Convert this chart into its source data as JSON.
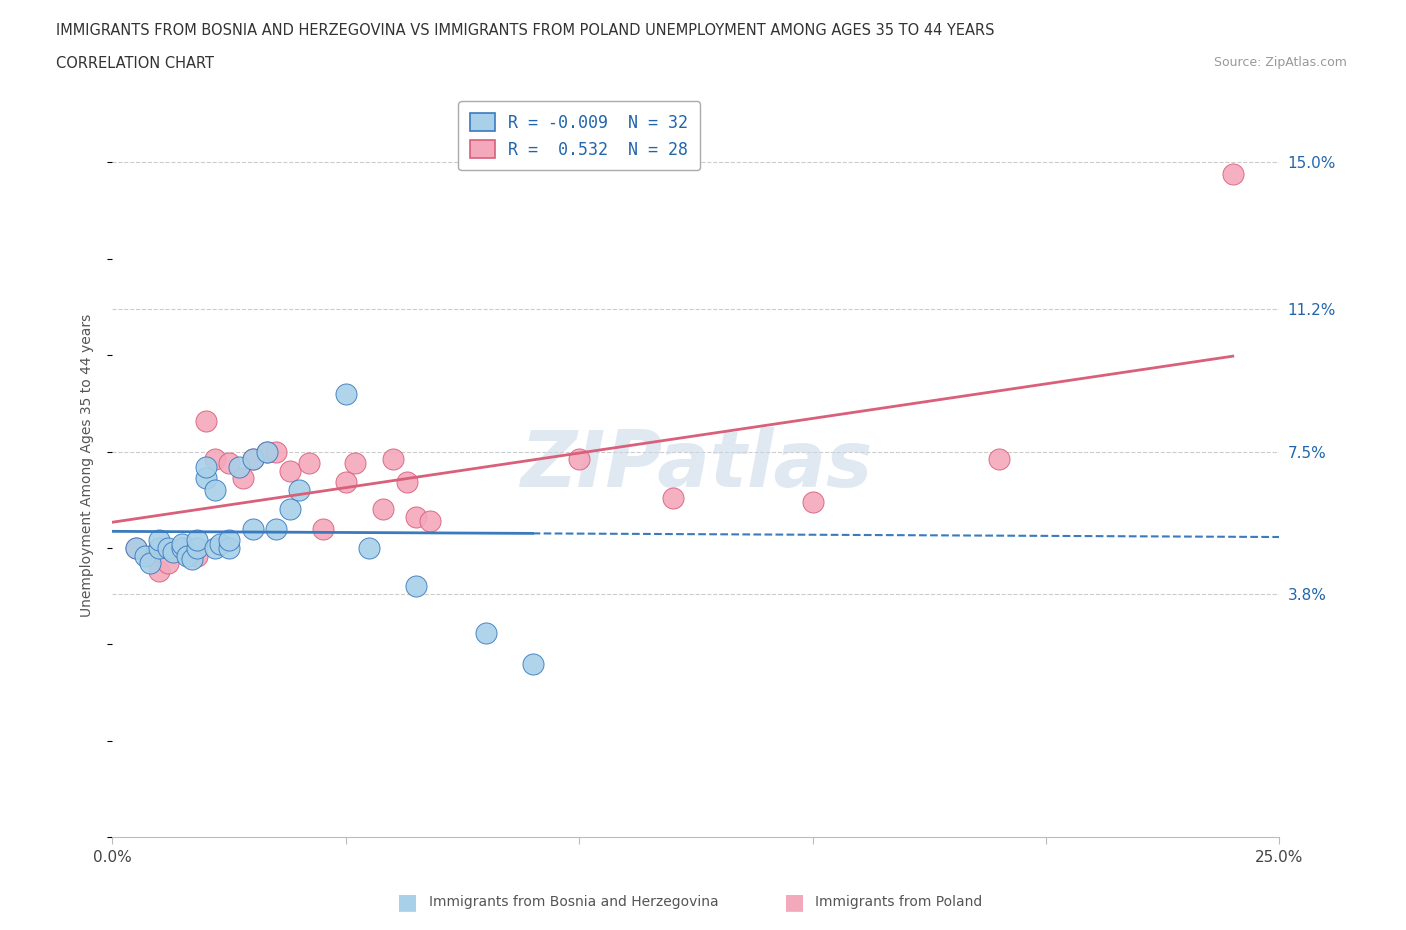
{
  "title_line1": "IMMIGRANTS FROM BOSNIA AND HERZEGOVINA VS IMMIGRANTS FROM POLAND UNEMPLOYMENT AMONG AGES 35 TO 44 YEARS",
  "title_line2": "CORRELATION CHART",
  "source_text": "Source: ZipAtlas.com",
  "ylabel": "Unemployment Among Ages 35 to 44 years",
  "xlim": [
    0.0,
    0.25
  ],
  "ylim": [
    -0.025,
    0.168
  ],
  "xticks": [
    0.0,
    0.05,
    0.1,
    0.15,
    0.2,
    0.25
  ],
  "xticklabels": [
    "0.0%",
    "",
    "",
    "",
    "",
    "25.0%"
  ],
  "ytick_positions": [
    0.038,
    0.075,
    0.112,
    0.15
  ],
  "ytick_labels": [
    "3.8%",
    "7.5%",
    "11.2%",
    "15.0%"
  ],
  "bosnia_R": -0.009,
  "bosnia_N": 32,
  "poland_R": 0.532,
  "poland_N": 28,
  "bosnia_color": "#a8d0e8",
  "poland_color": "#f4a8bc",
  "bosnia_line_color": "#3a7abf",
  "poland_line_color": "#d95f7a",
  "watermark": "ZIPatlas",
  "watermark_color": "#c8d8e8",
  "bosnia_x": [
    0.005,
    0.007,
    0.008,
    0.01,
    0.01,
    0.012,
    0.013,
    0.015,
    0.015,
    0.016,
    0.017,
    0.018,
    0.018,
    0.02,
    0.02,
    0.022,
    0.022,
    0.023,
    0.025,
    0.025,
    0.027,
    0.03,
    0.03,
    0.033,
    0.035,
    0.038,
    0.04,
    0.05,
    0.055,
    0.065,
    0.08,
    0.09
  ],
  "bosnia_y": [
    0.05,
    0.048,
    0.046,
    0.05,
    0.052,
    0.05,
    0.049,
    0.05,
    0.051,
    0.048,
    0.047,
    0.05,
    0.052,
    0.068,
    0.071,
    0.065,
    0.05,
    0.051,
    0.05,
    0.052,
    0.071,
    0.055,
    0.073,
    0.075,
    0.055,
    0.06,
    0.065,
    0.09,
    0.05,
    0.04,
    0.028,
    0.02
  ],
  "poland_x": [
    0.005,
    0.008,
    0.01,
    0.012,
    0.015,
    0.018,
    0.02,
    0.022,
    0.025,
    0.028,
    0.03,
    0.033,
    0.035,
    0.038,
    0.042,
    0.045,
    0.05,
    0.052,
    0.058,
    0.06,
    0.063,
    0.065,
    0.068,
    0.1,
    0.12,
    0.15,
    0.19,
    0.24
  ],
  "poland_y": [
    0.05,
    0.048,
    0.044,
    0.046,
    0.05,
    0.048,
    0.083,
    0.073,
    0.072,
    0.068,
    0.073,
    0.075,
    0.075,
    0.07,
    0.072,
    0.055,
    0.067,
    0.072,
    0.06,
    0.073,
    0.067,
    0.058,
    0.057,
    0.073,
    0.063,
    0.062,
    0.073,
    0.147
  ]
}
